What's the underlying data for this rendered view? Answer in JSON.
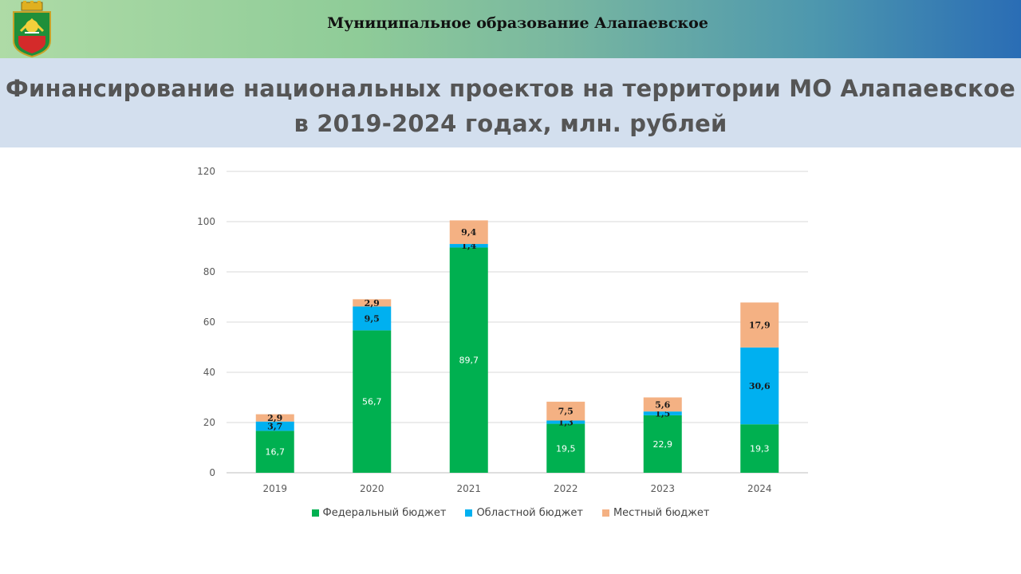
{
  "header": {
    "municipality": "Муниципальное образование Алапаевское"
  },
  "title": {
    "line1": "Финансирование национальных проектов на территории МО Алапаевское",
    "line2": "в 2019-2024 годах, млн. рублей"
  },
  "colors": {
    "federal": "#00b050",
    "regional": "#00b0f0",
    "local": "#f4b183",
    "grid": "#d9d9d9",
    "axis_text": "#595959"
  },
  "chart_data": {
    "type": "bar",
    "stacked": true,
    "categories": [
      "2019",
      "2020",
      "2021",
      "2022",
      "2023",
      "2024"
    ],
    "series": [
      {
        "name": "Федеральный бюджет",
        "values": [
          16.7,
          56.7,
          89.7,
          19.5,
          22.9,
          19.3
        ],
        "labels": [
          "16,7",
          "56,7",
          "89,7",
          "19,5",
          "22,9",
          "19,3"
        ]
      },
      {
        "name": "Областной бюджет",
        "values": [
          3.7,
          9.5,
          1.4,
          1.3,
          1.5,
          30.6
        ],
        "labels": [
          "3,7",
          "9,5",
          "1,4",
          "1,3",
          "1,5",
          "30,6"
        ]
      },
      {
        "name": "Местный бюджет",
        "values": [
          2.9,
          2.9,
          9.4,
          7.5,
          5.6,
          17.9
        ],
        "labels": [
          "2,9",
          "2,9",
          "9,4",
          "7,5",
          "5,6",
          "17,9"
        ]
      }
    ],
    "ylim": [
      0,
      120
    ],
    "yticks": [
      "0",
      "20",
      "40",
      "60",
      "80",
      "100",
      "120"
    ],
    "ytick_values": [
      0,
      20,
      40,
      60,
      80,
      100,
      120
    ],
    "grid": true,
    "legend_position": "bottom"
  }
}
